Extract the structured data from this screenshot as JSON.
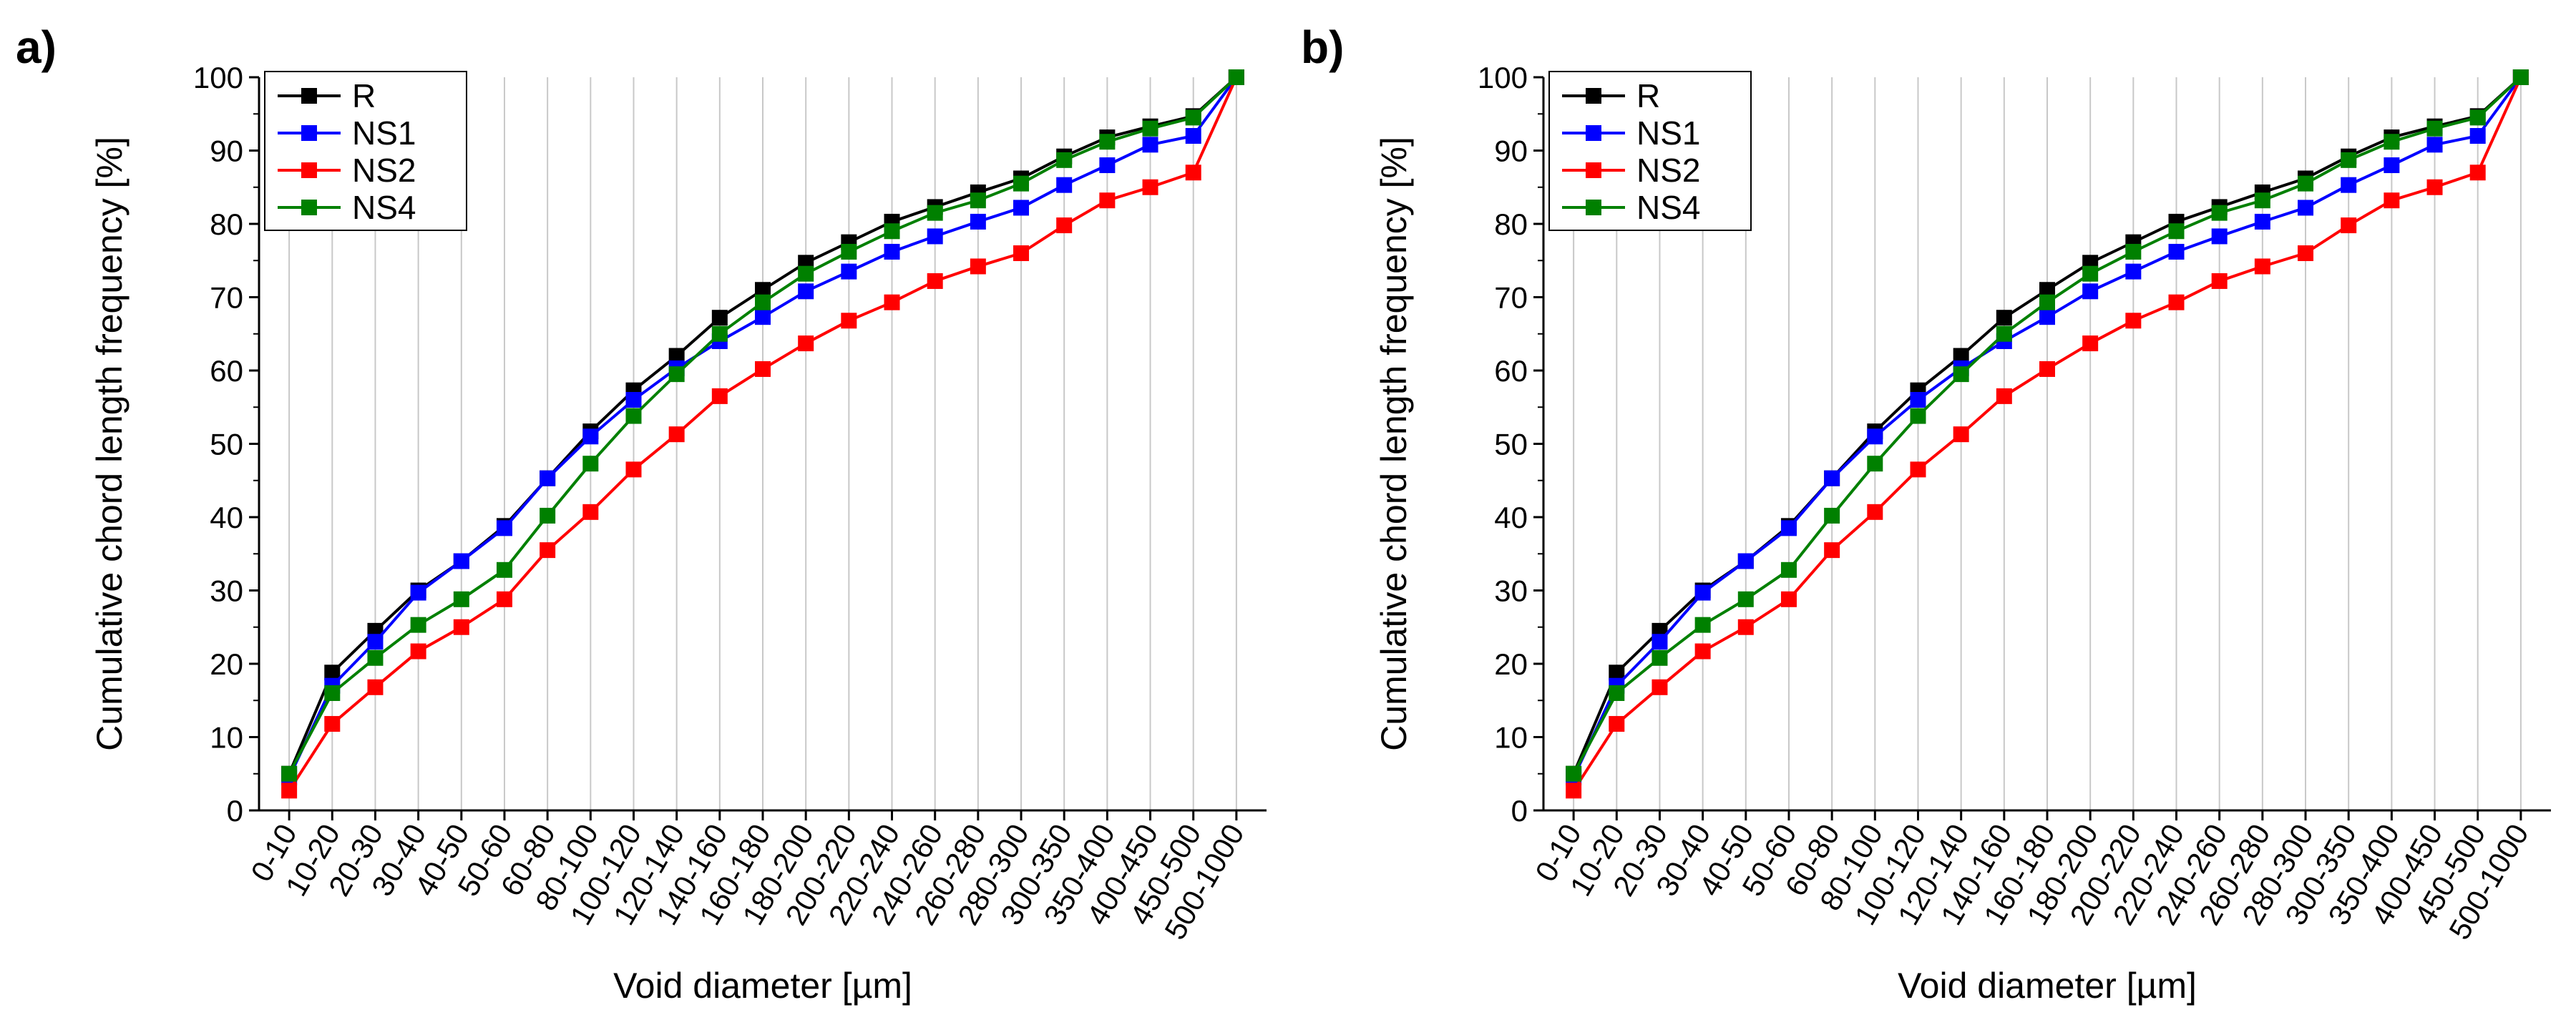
{
  "panels": [
    {
      "label": "a)"
    },
    {
      "label": "b)"
    }
  ],
  "colors": {
    "R": "#000000",
    "NS1": "#0000ff",
    "NS2": "#ff0000",
    "NS4": "#008000",
    "grid": "#c8c8c8"
  },
  "chart_data": [
    {
      "type": "line",
      "panel": "a)",
      "title": "",
      "xlabel": "Void diameter [µm]",
      "ylabel": "Cumulative chord length frequency [%]",
      "ylim": [
        0,
        100
      ],
      "yticks": [
        0,
        10,
        20,
        30,
        40,
        50,
        60,
        70,
        80,
        90,
        100
      ],
      "grid": "vertical",
      "legend": "top-left",
      "categories": [
        "0-10",
        "10-20",
        "20-30",
        "30-40",
        "40-50",
        "50-60",
        "60-80",
        "80-100",
        "100-120",
        "120-140",
        "140-160",
        "160-180",
        "180-200",
        "200-220",
        "220-240",
        "240-260",
        "260-280",
        "280-300",
        "300-350",
        "350-400",
        "400-450",
        "450-500",
        "500-1000"
      ],
      "series": [
        {
          "name": "R",
          "values": [
            5,
            18.8,
            24.5,
            30,
            34,
            38.8,
            45.3,
            51.7,
            57.3,
            62,
            67.2,
            71,
            74.7,
            77.5,
            80.3,
            82.3,
            84.3,
            86.2,
            89.2,
            91.8,
            93.3,
            94.7,
            100
          ]
        },
        {
          "name": "NS1",
          "values": [
            4.5,
            17,
            23,
            29.7,
            34,
            38.5,
            45.3,
            51,
            56,
            60.3,
            64,
            67.3,
            70.8,
            73.5,
            76.2,
            78.3,
            80.3,
            82.2,
            85.3,
            88,
            90.8,
            92,
            100
          ]
        },
        {
          "name": "NS2",
          "values": [
            2.7,
            11.8,
            16.8,
            21.7,
            25,
            28.8,
            35.5,
            40.7,
            46.5,
            51.3,
            56.5,
            60.2,
            63.7,
            66.8,
            69.3,
            72.2,
            74.2,
            76,
            79.8,
            83.2,
            85,
            87,
            100
          ]
        },
        {
          "name": "NS4",
          "values": [
            5,
            16,
            20.8,
            25.3,
            28.8,
            32.8,
            40.2,
            47.3,
            53.8,
            59.5,
            65,
            69.3,
            73.2,
            76.2,
            79,
            81.5,
            83.2,
            85.5,
            88.7,
            91.2,
            93,
            94.5,
            100
          ]
        }
      ]
    },
    {
      "type": "line",
      "panel": "b)",
      "title": "",
      "xlabel": "Void diameter [µm]",
      "ylabel": "Cumulative chord length frequency [%]",
      "ylim": [
        0,
        100
      ],
      "yticks": [
        0,
        10,
        20,
        30,
        40,
        50,
        60,
        70,
        80,
        90,
        100
      ],
      "grid": "vertical",
      "legend": "top-left",
      "categories": [
        "0-10",
        "10-20",
        "20-30",
        "30-40",
        "40-50",
        "50-60",
        "60-80",
        "80-100",
        "100-120",
        "120-140",
        "140-160",
        "160-180",
        "180-200",
        "200-220",
        "220-240",
        "240-260",
        "260-280",
        "280-300",
        "300-350",
        "350-400",
        "400-450",
        "450-500",
        "500-1000"
      ],
      "series": [
        {
          "name": "R",
          "values": [
            5,
            18.8,
            24.5,
            30,
            34,
            38.8,
            45.3,
            51.7,
            57.3,
            62,
            67.2,
            71,
            74.7,
            77.5,
            80.3,
            82.3,
            84.3,
            86.2,
            89.2,
            91.8,
            93.3,
            94.7,
            100
          ]
        },
        {
          "name": "NS1",
          "values": [
            4.5,
            17,
            23,
            29.7,
            34,
            38.5,
            45.3,
            51,
            56,
            60.3,
            64,
            67.3,
            70.8,
            73.5,
            76.2,
            78.3,
            80.3,
            82.2,
            85.3,
            88,
            90.8,
            92,
            100
          ]
        },
        {
          "name": "NS2",
          "values": [
            2.7,
            11.8,
            16.8,
            21.7,
            25,
            28.8,
            35.5,
            40.7,
            46.5,
            51.3,
            56.5,
            60.2,
            63.7,
            66.8,
            69.3,
            72.2,
            74.2,
            76,
            79.8,
            83.2,
            85,
            87,
            100
          ]
        },
        {
          "name": "NS4",
          "values": [
            5,
            16,
            20.8,
            25.3,
            28.8,
            32.8,
            40.2,
            47.3,
            53.8,
            59.5,
            65,
            69.3,
            73.2,
            76.2,
            79,
            81.5,
            83.2,
            85.5,
            88.7,
            91.2,
            93,
            94.5,
            100
          ]
        }
      ]
    }
  ]
}
